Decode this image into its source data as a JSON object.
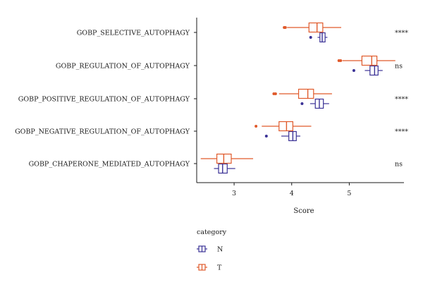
{
  "chart_data": {
    "type": "boxplot",
    "orientation": "horizontal",
    "xlabel": "Score",
    "xlim": [
      2.35,
      5.95
    ],
    "xticks": [
      3,
      4,
      5
    ],
    "categories": [
      "GOBP_SELECTIVE_AUTOPHAGY",
      "GOBP_REGULATION_OF_AUTOPHAGY",
      "GOBP_POSITIVE_REGULATION_OF_AUTOPHAGY",
      "GOBP_NEGATIVE_REGULATION_OF_AUTOPHAGY",
      "GOBP_CHAPERONE_MEDIATED_AUTOPHAGY"
    ],
    "significance": [
      "****",
      "ns",
      "****",
      "****",
      "ns"
    ],
    "legend": {
      "title": "category",
      "position": "bottom"
    },
    "series": [
      {
        "name": "N",
        "color": "#3b3296",
        "boxes": [
          {
            "whislo": 4.45,
            "q1": 4.49,
            "med": 4.53,
            "q3": 4.58,
            "whishi": 4.62,
            "outliers": [
              4.33
            ]
          },
          {
            "whislo": 5.27,
            "q1": 5.36,
            "med": 5.44,
            "q3": 5.5,
            "whishi": 5.58,
            "outliers": [
              5.08
            ]
          },
          {
            "whislo": 4.32,
            "q1": 4.41,
            "med": 4.48,
            "q3": 4.55,
            "whishi": 4.65,
            "outliers": [
              4.18
            ]
          },
          {
            "whislo": 3.82,
            "q1": 3.95,
            "med": 4.02,
            "q3": 4.08,
            "whishi": 4.15,
            "outliers": [
              3.56
            ]
          },
          {
            "whislo": 2.65,
            "q1": 2.73,
            "med": 2.8,
            "q3": 2.88,
            "whishi": 3.02,
            "outliers": []
          }
        ]
      },
      {
        "name": "T",
        "color": "#e05a2b",
        "boxes": [
          {
            "whislo": 3.92,
            "q1": 4.3,
            "med": 4.44,
            "q3": 4.54,
            "whishi": 4.86,
            "outliers": [
              3.87,
              3.89
            ]
          },
          {
            "whislo": 4.88,
            "q1": 5.22,
            "med": 5.39,
            "q3": 5.48,
            "whishi": 5.8,
            "outliers": [
              4.82,
              4.85
            ]
          },
          {
            "whislo": 3.78,
            "q1": 4.12,
            "med": 4.28,
            "q3": 4.38,
            "whishi": 4.7,
            "outliers": [
              3.69,
              3.72
            ]
          },
          {
            "whislo": 3.48,
            "q1": 3.78,
            "med": 3.91,
            "q3": 4.02,
            "whishi": 4.34,
            "outliers": [
              3.38
            ]
          },
          {
            "whislo": 2.42,
            "q1": 2.7,
            "med": 2.82,
            "q3": 2.95,
            "whishi": 3.33,
            "outliers": []
          }
        ]
      }
    ]
  }
}
